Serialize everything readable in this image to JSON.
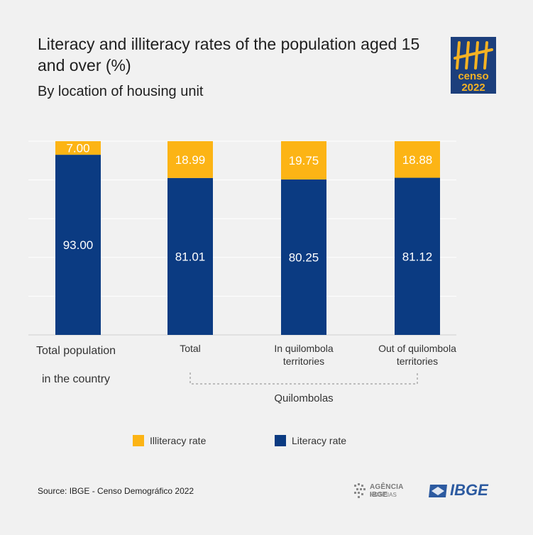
{
  "title": "Literacy and illiteracy rates of the population aged 15 and over (%)",
  "subtitle": "By location of housing unit",
  "logo": {
    "word": "censo",
    "year": "2022"
  },
  "group_label": "Quilombolas",
  "legend": [
    {
      "name": "Illiteracy rate",
      "color": "#fcb415"
    },
    {
      "name": "Literacy rate",
      "color": "#0b3b82"
    }
  ],
  "source": "Source: IBGE - Censo Demográfico 2022",
  "footer": {
    "agencia_main": "AGÊNCIA IBGE",
    "agencia_sub": "NOTÍCIAS",
    "ibge": "IBGE"
  },
  "chart_data": {
    "type": "bar",
    "stacked": true,
    "categories": [
      [
        "Total population",
        "in the country"
      ],
      [
        "Total"
      ],
      [
        "In quilombola",
        "territories"
      ],
      [
        "Out of quilombola",
        "territories"
      ]
    ],
    "series": [
      {
        "name": "Literacy rate",
        "color": "#0b3b82",
        "values": [
          93.0,
          81.01,
          80.25,
          81.12
        ]
      },
      {
        "name": "Illiteracy rate",
        "color": "#fcb415",
        "values": [
          7.0,
          18.99,
          19.75,
          18.88
        ]
      }
    ],
    "ylim": [
      0,
      100
    ],
    "grid": true
  }
}
